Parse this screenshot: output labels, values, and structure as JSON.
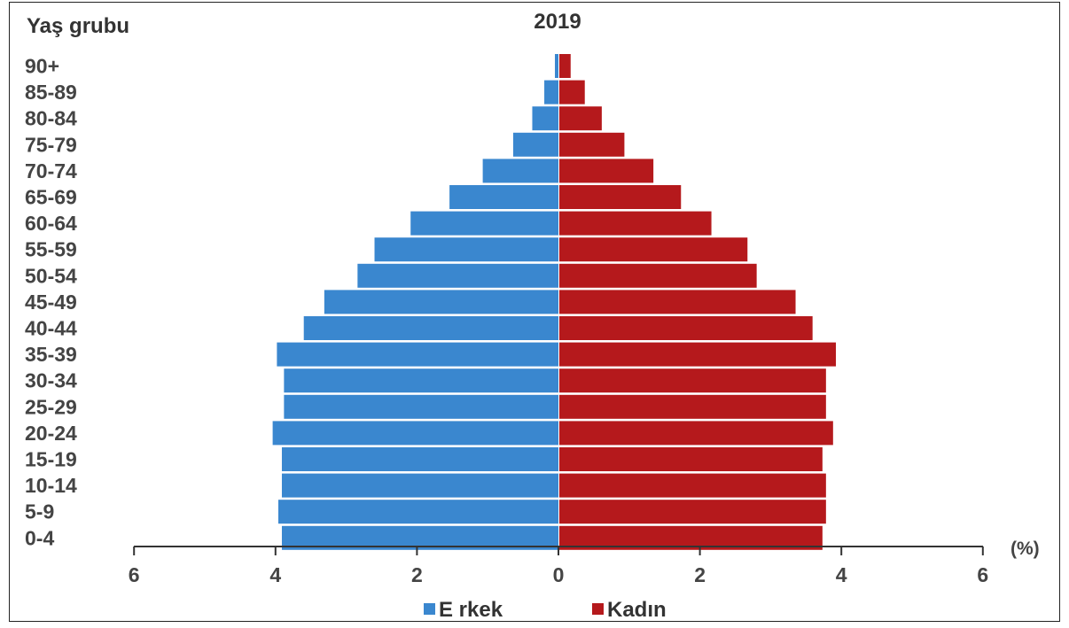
{
  "chart_data": {
    "type": "bar",
    "orientation": "horizontal",
    "title": "2019",
    "ylabel": "Yaş grubu",
    "xunit": "(%)",
    "xlim": [
      -6,
      6
    ],
    "xticks": [
      6,
      4,
      2,
      0,
      2,
      4,
      6
    ],
    "categories": [
      "90+",
      "85-89",
      "80-84",
      "75-79",
      "70-74",
      "65-69",
      "60-64",
      "55-59",
      "50-54",
      "45-49",
      "40-44",
      "35-39",
      "30-34",
      "25-29",
      "20-24",
      "15-19",
      "10-14",
      "5-9",
      "0-4"
    ],
    "series": [
      {
        "name": "E rkek",
        "color": "#3a87cf",
        "direction": "left",
        "values": [
          0.05,
          0.2,
          0.37,
          0.64,
          1.07,
          1.54,
          2.09,
          2.6,
          2.84,
          3.31,
          3.6,
          3.98,
          3.88,
          3.88,
          4.04,
          3.91,
          3.91,
          3.96,
          3.91
        ]
      },
      {
        "name": "Kadın",
        "color": "#b5191c",
        "direction": "right",
        "values": [
          0.16,
          0.36,
          0.6,
          0.92,
          1.33,
          1.72,
          2.15,
          2.66,
          2.79,
          3.34,
          3.58,
          3.91,
          3.77,
          3.77,
          3.87,
          3.72,
          3.77,
          3.77,
          3.72
        ]
      }
    ],
    "grid": false,
    "legend_position": "bottom-center"
  }
}
